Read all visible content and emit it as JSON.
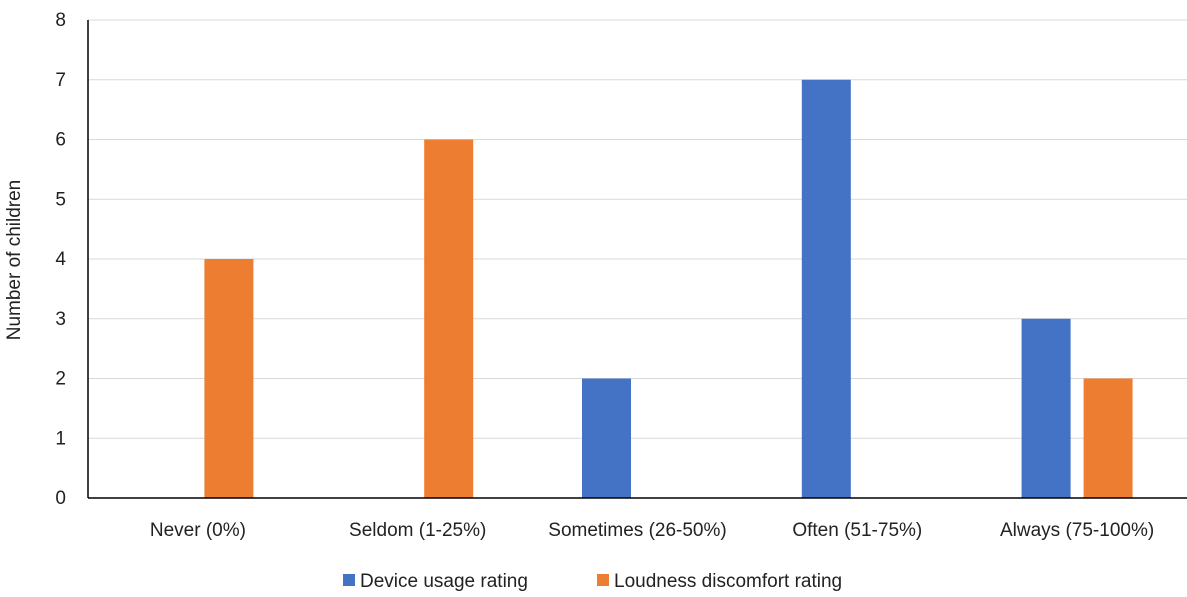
{
  "chart_data": {
    "type": "bar",
    "title": "",
    "xlabel": "",
    "ylabel": "Number of children",
    "ylim": [
      0,
      8
    ],
    "yticks": [
      0,
      1,
      2,
      3,
      4,
      5,
      6,
      7,
      8
    ],
    "grid": true,
    "legend_position": "bottom",
    "categories": [
      "Never (0%)",
      "Seldom (1-25%)",
      "Sometimes (26-50%)",
      "Often (51-75%)",
      "Always (75-100%)"
    ],
    "series": [
      {
        "name": "Device usage rating",
        "color": "#4472c4",
        "values": [
          0,
          0,
          2,
          7,
          3
        ]
      },
      {
        "name": "Loudness discomfort rating",
        "color": "#ed7d31",
        "values": [
          4,
          6,
          0,
          0,
          2
        ]
      }
    ]
  }
}
